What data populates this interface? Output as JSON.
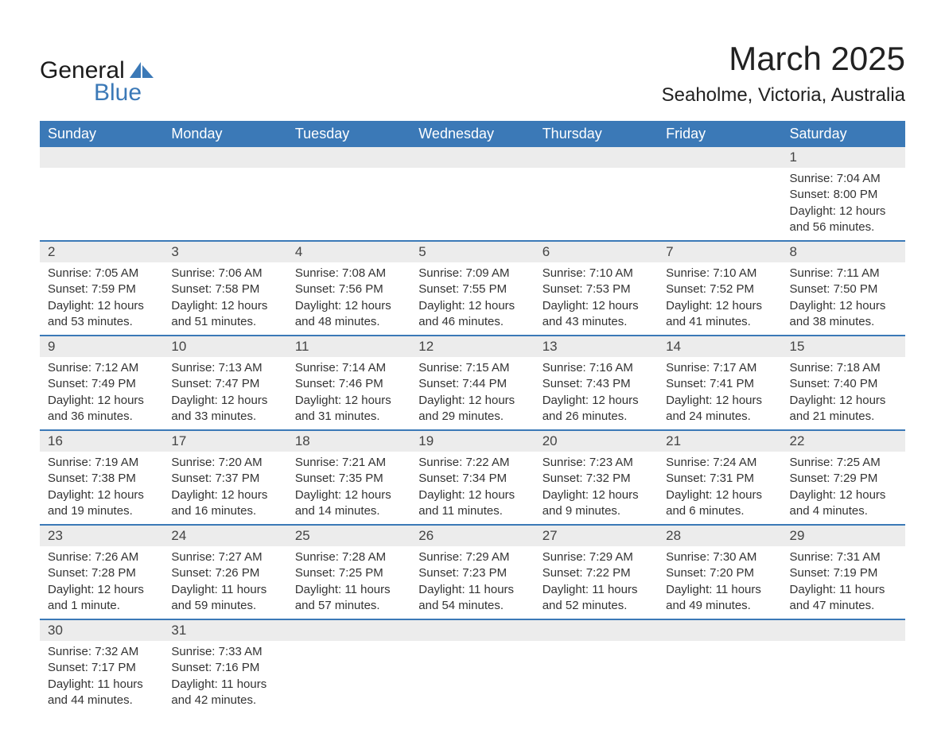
{
  "logo": {
    "word1": "General",
    "word2": "Blue"
  },
  "title": "March 2025",
  "location": "Seaholme, Victoria, Australia",
  "colors": {
    "header_bg": "#3b79b7",
    "header_text": "#ffffff",
    "daynum_bg": "#ececec",
    "row_divider": "#3b79b7",
    "body_text": "#333333",
    "logo_blue": "#3b79b7",
    "page_bg": "#ffffff"
  },
  "layout": {
    "columns": 7,
    "rows": 6,
    "title_fontsize": 42,
    "location_fontsize": 24,
    "header_fontsize": 18,
    "cell_fontsize": 15,
    "daynum_fontsize": 17
  },
  "weekdays": [
    "Sunday",
    "Monday",
    "Tuesday",
    "Wednesday",
    "Thursday",
    "Friday",
    "Saturday"
  ],
  "weeks": [
    [
      null,
      null,
      null,
      null,
      null,
      null,
      {
        "day": "1",
        "sunrise": "Sunrise: 7:04 AM",
        "sunset": "Sunset: 8:00 PM",
        "daylight": "Daylight: 12 hours and 56 minutes."
      }
    ],
    [
      {
        "day": "2",
        "sunrise": "Sunrise: 7:05 AM",
        "sunset": "Sunset: 7:59 PM",
        "daylight": "Daylight: 12 hours and 53 minutes."
      },
      {
        "day": "3",
        "sunrise": "Sunrise: 7:06 AM",
        "sunset": "Sunset: 7:58 PM",
        "daylight": "Daylight: 12 hours and 51 minutes."
      },
      {
        "day": "4",
        "sunrise": "Sunrise: 7:08 AM",
        "sunset": "Sunset: 7:56 PM",
        "daylight": "Daylight: 12 hours and 48 minutes."
      },
      {
        "day": "5",
        "sunrise": "Sunrise: 7:09 AM",
        "sunset": "Sunset: 7:55 PM",
        "daylight": "Daylight: 12 hours and 46 minutes."
      },
      {
        "day": "6",
        "sunrise": "Sunrise: 7:10 AM",
        "sunset": "Sunset: 7:53 PM",
        "daylight": "Daylight: 12 hours and 43 minutes."
      },
      {
        "day": "7",
        "sunrise": "Sunrise: 7:10 AM",
        "sunset": "Sunset: 7:52 PM",
        "daylight": "Daylight: 12 hours and 41 minutes."
      },
      {
        "day": "8",
        "sunrise": "Sunrise: 7:11 AM",
        "sunset": "Sunset: 7:50 PM",
        "daylight": "Daylight: 12 hours and 38 minutes."
      }
    ],
    [
      {
        "day": "9",
        "sunrise": "Sunrise: 7:12 AM",
        "sunset": "Sunset: 7:49 PM",
        "daylight": "Daylight: 12 hours and 36 minutes."
      },
      {
        "day": "10",
        "sunrise": "Sunrise: 7:13 AM",
        "sunset": "Sunset: 7:47 PM",
        "daylight": "Daylight: 12 hours and 33 minutes."
      },
      {
        "day": "11",
        "sunrise": "Sunrise: 7:14 AM",
        "sunset": "Sunset: 7:46 PM",
        "daylight": "Daylight: 12 hours and 31 minutes."
      },
      {
        "day": "12",
        "sunrise": "Sunrise: 7:15 AM",
        "sunset": "Sunset: 7:44 PM",
        "daylight": "Daylight: 12 hours and 29 minutes."
      },
      {
        "day": "13",
        "sunrise": "Sunrise: 7:16 AM",
        "sunset": "Sunset: 7:43 PM",
        "daylight": "Daylight: 12 hours and 26 minutes."
      },
      {
        "day": "14",
        "sunrise": "Sunrise: 7:17 AM",
        "sunset": "Sunset: 7:41 PM",
        "daylight": "Daylight: 12 hours and 24 minutes."
      },
      {
        "day": "15",
        "sunrise": "Sunrise: 7:18 AM",
        "sunset": "Sunset: 7:40 PM",
        "daylight": "Daylight: 12 hours and 21 minutes."
      }
    ],
    [
      {
        "day": "16",
        "sunrise": "Sunrise: 7:19 AM",
        "sunset": "Sunset: 7:38 PM",
        "daylight": "Daylight: 12 hours and 19 minutes."
      },
      {
        "day": "17",
        "sunrise": "Sunrise: 7:20 AM",
        "sunset": "Sunset: 7:37 PM",
        "daylight": "Daylight: 12 hours and 16 minutes."
      },
      {
        "day": "18",
        "sunrise": "Sunrise: 7:21 AM",
        "sunset": "Sunset: 7:35 PM",
        "daylight": "Daylight: 12 hours and 14 minutes."
      },
      {
        "day": "19",
        "sunrise": "Sunrise: 7:22 AM",
        "sunset": "Sunset: 7:34 PM",
        "daylight": "Daylight: 12 hours and 11 minutes."
      },
      {
        "day": "20",
        "sunrise": "Sunrise: 7:23 AM",
        "sunset": "Sunset: 7:32 PM",
        "daylight": "Daylight: 12 hours and 9 minutes."
      },
      {
        "day": "21",
        "sunrise": "Sunrise: 7:24 AM",
        "sunset": "Sunset: 7:31 PM",
        "daylight": "Daylight: 12 hours and 6 minutes."
      },
      {
        "day": "22",
        "sunrise": "Sunrise: 7:25 AM",
        "sunset": "Sunset: 7:29 PM",
        "daylight": "Daylight: 12 hours and 4 minutes."
      }
    ],
    [
      {
        "day": "23",
        "sunrise": "Sunrise: 7:26 AM",
        "sunset": "Sunset: 7:28 PM",
        "daylight": "Daylight: 12 hours and 1 minute."
      },
      {
        "day": "24",
        "sunrise": "Sunrise: 7:27 AM",
        "sunset": "Sunset: 7:26 PM",
        "daylight": "Daylight: 11 hours and 59 minutes."
      },
      {
        "day": "25",
        "sunrise": "Sunrise: 7:28 AM",
        "sunset": "Sunset: 7:25 PM",
        "daylight": "Daylight: 11 hours and 57 minutes."
      },
      {
        "day": "26",
        "sunrise": "Sunrise: 7:29 AM",
        "sunset": "Sunset: 7:23 PM",
        "daylight": "Daylight: 11 hours and 54 minutes."
      },
      {
        "day": "27",
        "sunrise": "Sunrise: 7:29 AM",
        "sunset": "Sunset: 7:22 PM",
        "daylight": "Daylight: 11 hours and 52 minutes."
      },
      {
        "day": "28",
        "sunrise": "Sunrise: 7:30 AM",
        "sunset": "Sunset: 7:20 PM",
        "daylight": "Daylight: 11 hours and 49 minutes."
      },
      {
        "day": "29",
        "sunrise": "Sunrise: 7:31 AM",
        "sunset": "Sunset: 7:19 PM",
        "daylight": "Daylight: 11 hours and 47 minutes."
      }
    ],
    [
      {
        "day": "30",
        "sunrise": "Sunrise: 7:32 AM",
        "sunset": "Sunset: 7:17 PM",
        "daylight": "Daylight: 11 hours and 44 minutes."
      },
      {
        "day": "31",
        "sunrise": "Sunrise: 7:33 AM",
        "sunset": "Sunset: 7:16 PM",
        "daylight": "Daylight: 11 hours and 42 minutes."
      },
      null,
      null,
      null,
      null,
      null
    ]
  ]
}
